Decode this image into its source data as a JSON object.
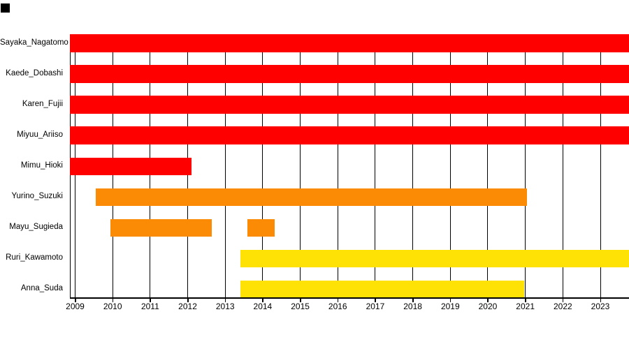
{
  "ui": {
    "background_color": "#ffffff",
    "corner_square_color": "#000000"
  },
  "chart_data": {
    "type": "bar",
    "subtype": "gantt-timeline",
    "orientation": "horizontal",
    "title": "",
    "xlabel": "",
    "ylabel": "",
    "legend": "none",
    "grid": "vertical-year-lines-black-behind-bars",
    "x_axis": {
      "min": 2008.86,
      "max": 2023.76,
      "ticks": [
        2009,
        2010,
        2011,
        2012,
        2013,
        2014,
        2015,
        2016,
        2017,
        2018,
        2019,
        2020,
        2021,
        2022,
        2023
      ]
    },
    "colors": {
      "red": "#fe0000",
      "orange": "#fb8b05",
      "yellow": "#ffe205"
    },
    "rows": [
      {
        "label": "Sayaka_Nagatomo",
        "color": "#fe0000",
        "segments": [
          [
            2008.86,
            2023.76
          ]
        ]
      },
      {
        "label": "Kaede_Dobashi",
        "color": "#fe0000",
        "segments": [
          [
            2008.86,
            2023.76
          ]
        ]
      },
      {
        "label": "Karen_Fujii",
        "color": "#fe0000",
        "segments": [
          [
            2008.86,
            2023.76
          ]
        ]
      },
      {
        "label": "Miyuu_Ariiso",
        "color": "#fe0000",
        "segments": [
          [
            2008.86,
            2023.76
          ]
        ]
      },
      {
        "label": "Mimu_Hioki",
        "color": "#fe0000",
        "segments": [
          [
            2008.86,
            2012.1
          ]
        ]
      },
      {
        "label": "Yurino_Suzuki",
        "color": "#fb8b05",
        "segments": [
          [
            2009.55,
            2021.05
          ]
        ]
      },
      {
        "label": "Mayu_Sugieda",
        "color": "#fb8b05",
        "segments": [
          [
            2009.95,
            2012.65
          ],
          [
            2013.6,
            2014.31
          ]
        ]
      },
      {
        "label": "Ruri_Kawamoto",
        "color": "#ffe205",
        "segments": [
          [
            2013.4,
            2023.76
          ]
        ]
      },
      {
        "label": "Anna_Suda",
        "color": "#ffe205",
        "segments": [
          [
            2013.4,
            2020.97
          ]
        ]
      }
    ]
  }
}
